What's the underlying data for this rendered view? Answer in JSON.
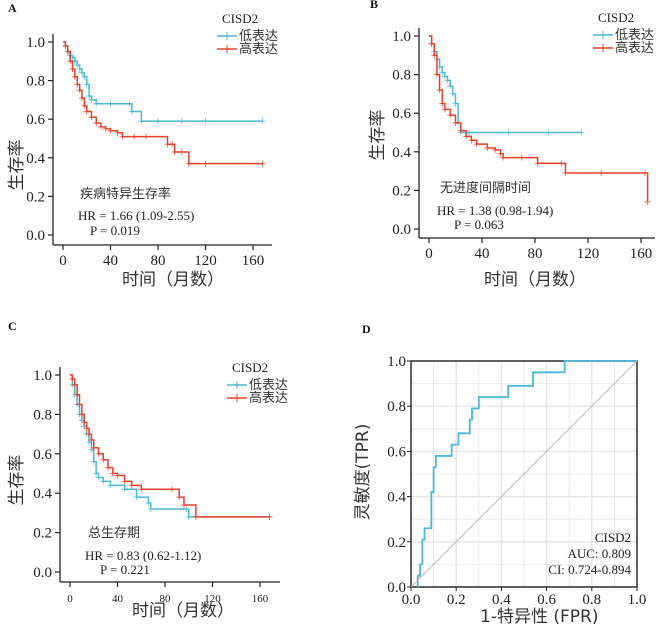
{
  "colors": {
    "low": "#4db8d6",
    "high": "#e8412b",
    "diag": "#bdbdbd",
    "grid": "#e6e6e6",
    "axis": "#222222"
  },
  "chart_data": [
    {
      "id": "A",
      "type": "line",
      "subtype": "kaplan-meier",
      "panel_label": "A",
      "title": "疾病特异生存率",
      "xlabel": "时间（月数）",
      "ylabel": "生存率",
      "xlim": [
        0,
        170
      ],
      "ylim": [
        0,
        1.0
      ],
      "xticks": [
        "0",
        "40",
        "80",
        "120",
        "160"
      ],
      "yticks": [
        "0.0",
        "0.2",
        "0.4",
        "0.6",
        "0.8",
        "1.0"
      ],
      "legend_title": "CISD2",
      "legend_position": "top-right",
      "stats": {
        "hr": "HR = 1.66 (1.09-2.55)",
        "p": "P = 0.019"
      },
      "series": [
        {
          "name": "低表达",
          "color_key": "low",
          "x": [
            0,
            2,
            4,
            6,
            8,
            10,
            12,
            14,
            16,
            18,
            20,
            22,
            24,
            28,
            40,
            56,
            58,
            66,
            80,
            100,
            120,
            168
          ],
          "y": [
            1.0,
            0.98,
            0.95,
            0.93,
            0.92,
            0.9,
            0.88,
            0.86,
            0.84,
            0.82,
            0.78,
            0.72,
            0.7,
            0.68,
            0.68,
            0.68,
            0.64,
            0.59,
            0.59,
            0.59,
            0.59,
            0.59
          ]
        },
        {
          "name": "高表达",
          "color_key": "high",
          "x": [
            0,
            2,
            4,
            6,
            8,
            10,
            12,
            14,
            16,
            18,
            20,
            24,
            28,
            32,
            36,
            40,
            46,
            50,
            60,
            70,
            88,
            92,
            94,
            100,
            106,
            120,
            168
          ],
          "y": [
            1.0,
            0.98,
            0.95,
            0.9,
            0.86,
            0.82,
            0.78,
            0.75,
            0.71,
            0.67,
            0.64,
            0.61,
            0.58,
            0.56,
            0.55,
            0.54,
            0.53,
            0.51,
            0.51,
            0.51,
            0.47,
            0.47,
            0.43,
            0.43,
            0.37,
            0.37,
            0.37
          ]
        }
      ]
    },
    {
      "id": "B",
      "type": "line",
      "subtype": "kaplan-meier",
      "panel_label": "B",
      "title": "无进度间隔时间",
      "xlabel": "时间（月数）",
      "ylabel": "生存率",
      "xlim": [
        0,
        170
      ],
      "ylim": [
        0,
        1.0
      ],
      "xticks": [
        "0",
        "40",
        "80",
        "120",
        "160"
      ],
      "yticks": [
        "0.0",
        "0.2",
        "0.4",
        "0.6",
        "0.8",
        "1.0"
      ],
      "legend_title": "CISD2",
      "legend_position": "top-right",
      "stats": {
        "hr": "HR = 1.38 (0.98-1.94)",
        "p": "P = 0.063"
      },
      "series": [
        {
          "name": "低表达",
          "color_key": "low",
          "x": [
            0,
            2,
            4,
            6,
            8,
            10,
            12,
            14,
            16,
            18,
            20,
            22,
            24,
            30,
            60,
            90,
            115
          ],
          "y": [
            1.0,
            0.96,
            0.92,
            0.88,
            0.84,
            0.81,
            0.79,
            0.77,
            0.74,
            0.7,
            0.65,
            0.55,
            0.5,
            0.5,
            0.5,
            0.5,
            0.5
          ]
        },
        {
          "name": "高表达",
          "color_key": "high",
          "x": [
            0,
            2,
            4,
            6,
            8,
            10,
            12,
            16,
            20,
            24,
            28,
            32,
            36,
            44,
            50,
            54,
            56,
            70,
            82,
            100,
            103,
            130,
            163,
            165
          ],
          "y": [
            1.0,
            0.96,
            0.9,
            0.8,
            0.72,
            0.65,
            0.62,
            0.59,
            0.55,
            0.51,
            0.48,
            0.46,
            0.44,
            0.42,
            0.41,
            0.39,
            0.37,
            0.37,
            0.34,
            0.34,
            0.29,
            0.29,
            0.29,
            0.14
          ]
        }
      ]
    },
    {
      "id": "C",
      "type": "line",
      "subtype": "kaplan-meier",
      "panel_label": "C",
      "title": "总生存期",
      "xlabel": "时间（月数）",
      "ylabel": "生存率",
      "xlim": [
        0,
        175
      ],
      "ylim": [
        0,
        1.0
      ],
      "xticks": [
        "0",
        "40",
        "80",
        "120",
        "160"
      ],
      "yticks": [
        "0.0",
        "0.2",
        "0.4",
        "0.6",
        "0.8",
        "1.0"
      ],
      "legend_title": "CISD2",
      "legend_position": "top-right",
      "stats": {
        "hr": "HR = 0.83 (0.62-1.12)",
        "p": "P = 0.221"
      },
      "series": [
        {
          "name": "低表达",
          "color_key": "low",
          "x": [
            0,
            2,
            4,
            6,
            8,
            10,
            12,
            14,
            16,
            18,
            20,
            22,
            24,
            28,
            34,
            46,
            56,
            66,
            68,
            98,
            100,
            168
          ],
          "y": [
            1.0,
            0.95,
            0.9,
            0.85,
            0.8,
            0.77,
            0.74,
            0.7,
            0.66,
            0.62,
            0.56,
            0.5,
            0.48,
            0.46,
            0.44,
            0.42,
            0.38,
            0.35,
            0.32,
            0.32,
            0.28,
            0.28
          ]
        },
        {
          "name": "高表达",
          "color_key": "high",
          "x": [
            0,
            2,
            4,
            6,
            8,
            10,
            12,
            14,
            16,
            18,
            20,
            24,
            28,
            32,
            36,
            40,
            46,
            52,
            60,
            86,
            92,
            96,
            106,
            168
          ],
          "y": [
            1.0,
            0.98,
            0.95,
            0.9,
            0.85,
            0.8,
            0.76,
            0.73,
            0.7,
            0.67,
            0.63,
            0.6,
            0.57,
            0.53,
            0.5,
            0.49,
            0.46,
            0.44,
            0.42,
            0.42,
            0.38,
            0.34,
            0.28,
            0.28
          ]
        }
      ]
    },
    {
      "id": "D",
      "type": "line",
      "subtype": "roc",
      "panel_label": "D",
      "xlabel": "1-特异性 (FPR)",
      "ylabel": "灵敏度(TPR)",
      "xlim": [
        0,
        1.0
      ],
      "ylim": [
        0,
        1.0
      ],
      "xticks": [
        "0.0",
        "0.2",
        "0.4",
        "0.6",
        "0.8",
        "1.0"
      ],
      "yticks": [
        "0.0",
        "0.2",
        "0.4",
        "0.6",
        "0.8",
        "1.0"
      ],
      "grid": true,
      "legend_position": "bottom-right",
      "annotation": {
        "name": "CISD2",
        "auc": "AUC: 0.809",
        "ci": "CI: 0.724-0.894"
      },
      "series": [
        {
          "name": "CISD2",
          "color_key": "low",
          "x": [
            0.03,
            0.03,
            0.04,
            0.04,
            0.05,
            0.05,
            0.06,
            0.06,
            0.09,
            0.09,
            0.1,
            0.1,
            0.11,
            0.11,
            0.18,
            0.18,
            0.21,
            0.21,
            0.26,
            0.26,
            0.27,
            0.27,
            0.3,
            0.3,
            0.43,
            0.43,
            0.54,
            0.54,
            0.68,
            0.68,
            1.0
          ],
          "y": [
            0.0,
            0.05,
            0.05,
            0.1,
            0.1,
            0.21,
            0.21,
            0.26,
            0.26,
            0.42,
            0.42,
            0.53,
            0.53,
            0.58,
            0.58,
            0.63,
            0.63,
            0.68,
            0.68,
            0.74,
            0.74,
            0.79,
            0.79,
            0.84,
            0.84,
            0.89,
            0.89,
            0.95,
            0.95,
            1.0,
            1.0
          ]
        },
        {
          "name": "reference",
          "color_key": "diag",
          "x": [
            0,
            1
          ],
          "y": [
            0,
            1
          ]
        }
      ]
    }
  ]
}
